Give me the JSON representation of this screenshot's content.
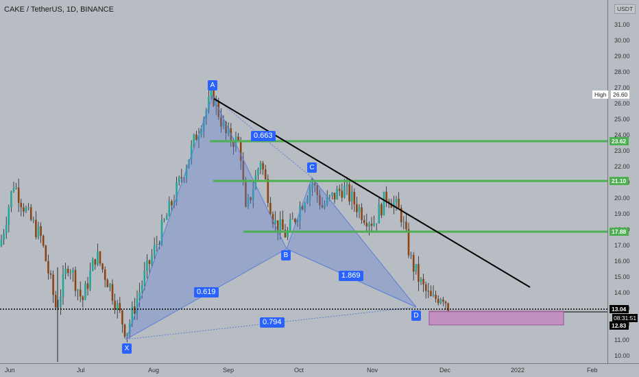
{
  "header": {
    "title": "CAKE / TetherUS, 1D, BINANCE",
    "currency": "USDT"
  },
  "price_axis": [
    "31.00",
    "30.00",
    "29.00",
    "28.00",
    "27.00",
    "26.00",
    "25.00",
    "24.00",
    "23.00",
    "22.00",
    "21.00",
    "20.00",
    "19.00",
    "18.00",
    "17.00",
    "16.00",
    "15.00",
    "14.00",
    "13.00",
    "12.00",
    "11.00",
    "10.00"
  ],
  "time_axis": [
    "Jun",
    "Jul",
    "Aug",
    "Sep",
    "Oct",
    "Nov",
    "Dec",
    "2022",
    "Feb"
  ],
  "badges": {
    "high_label": "High",
    "high_value": "26.60",
    "level_1": "23.62",
    "level_2": "21.10",
    "level_3": "17.88",
    "current": "13.04",
    "countdown": "08:31:51",
    "low": "12.83"
  },
  "pattern": {
    "points": {
      "x": "X",
      "a": "A",
      "b": "B",
      "c": "C",
      "d": "D"
    },
    "ratios": {
      "ab": "0.663",
      "xb": "0.619",
      "bd": "1.869",
      "xd": "0.794"
    }
  },
  "colors": {
    "background": "#b8bcc3",
    "bull": "#26a69a",
    "bear": "#8b4513",
    "level_line": "#4caf50",
    "pattern_fill": "#5b7fd6",
    "accent": "#2962ff",
    "zone": "#c38ac0"
  }
}
